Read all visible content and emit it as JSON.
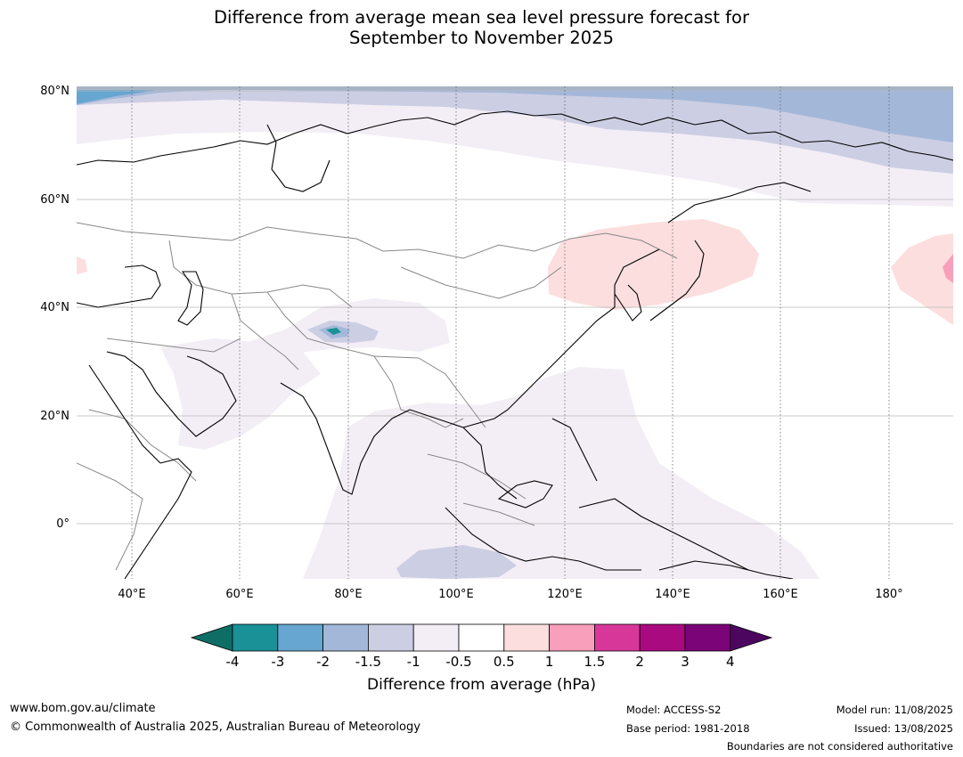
{
  "title_line1": "Difference from average mean sea level pressure forecast for",
  "title_line2": "September to November 2025",
  "map": {
    "lat_labels": [
      "80°N",
      "60°N",
      "40°N",
      "20°N",
      "0°"
    ],
    "lon_labels": [
      "40°E",
      "60°E",
      "80°E",
      "100°E",
      "120°E",
      "140°E",
      "160°E",
      "180°"
    ]
  },
  "colorbar": {
    "title": "Difference from average (hPa)",
    "ticks": [
      "-4",
      "-3",
      "-2",
      "-1.5",
      "-1",
      "-0.5",
      "0.5",
      "1",
      "1.5",
      "2",
      "3",
      "4"
    ],
    "colors": {
      "below": "#0e6e66",
      "bins": [
        "#1a9097",
        "#66a6d0",
        "#a3b8d9",
        "#cccee3",
        "#f3eef6",
        "#ffffff",
        "#fcdede",
        "#f89fbb",
        "#d8379a",
        "#aa0a7f",
        "#7b0478"
      ],
      "above": "#4d0660"
    }
  },
  "footer": {
    "website": "www.bom.gov.au/climate",
    "copyright": "© Commonwealth of Australia 2025, Australian Bureau of Meteorology",
    "model": "Model: ACCESS-S2",
    "base_period": "Base period: 1981-2018",
    "model_run": "Model run: 11/08/2025",
    "issued": "Issued: 13/08/2025",
    "boundaries": "Boundaries are not considered authoritative"
  }
}
